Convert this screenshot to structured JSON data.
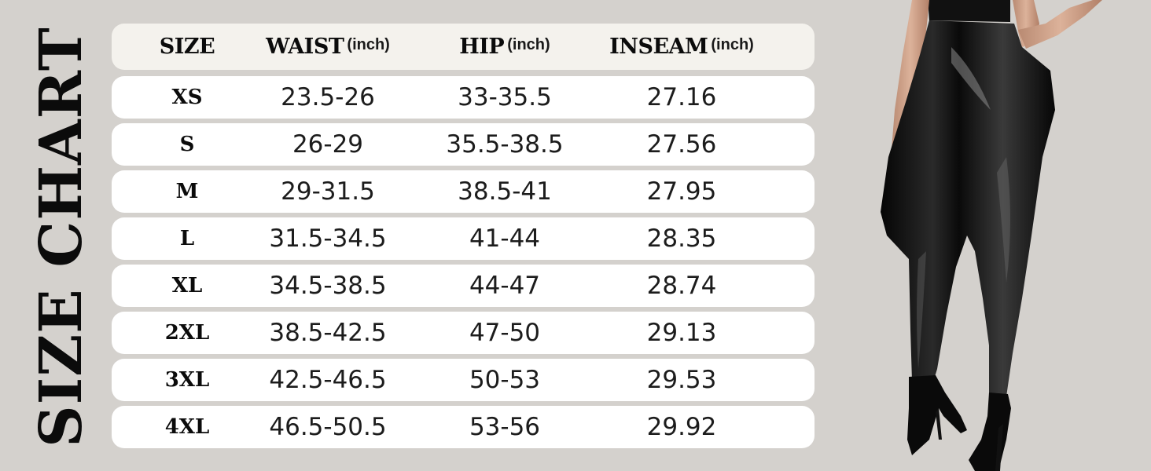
{
  "title": "SIZE CHART",
  "headers": {
    "size": "SIZE",
    "waist": "WAIST",
    "waist_unit": "(inch)",
    "hip": "HIP",
    "hip_unit": "(inch)",
    "inseam": "INSEAM",
    "inseam_unit": "(inch)"
  },
  "rows": [
    {
      "size": "XS",
      "waist": "23.5-26",
      "hip": "33-35.5",
      "inseam": "27.16"
    },
    {
      "size": "S",
      "waist": "26-29",
      "hip": "35.5-38.5",
      "inseam": "27.56"
    },
    {
      "size": "M",
      "waist": "29-31.5",
      "hip": "38.5-41",
      "inseam": "27.95"
    },
    {
      "size": "L",
      "waist": "31.5-34.5",
      "hip": "41-44",
      "inseam": "28.35"
    },
    {
      "size": "XL",
      "waist": "34.5-38.5",
      "hip": "44-47",
      "inseam": "28.74"
    },
    {
      "size": "2XL",
      "waist": "38.5-42.5",
      "hip": "47-50",
      "inseam": "29.13"
    },
    {
      "size": "3XL",
      "waist": "42.5-46.5",
      "hip": "50-53",
      "inseam": "29.53"
    },
    {
      "size": "4XL",
      "waist": "46.5-50.5",
      "hip": "53-56",
      "inseam": "29.92"
    }
  ],
  "colors": {
    "background": "#d4d1cd",
    "row": "#ffffff",
    "header_row": "#f4f2ed",
    "text": "#0b0b0b"
  }
}
